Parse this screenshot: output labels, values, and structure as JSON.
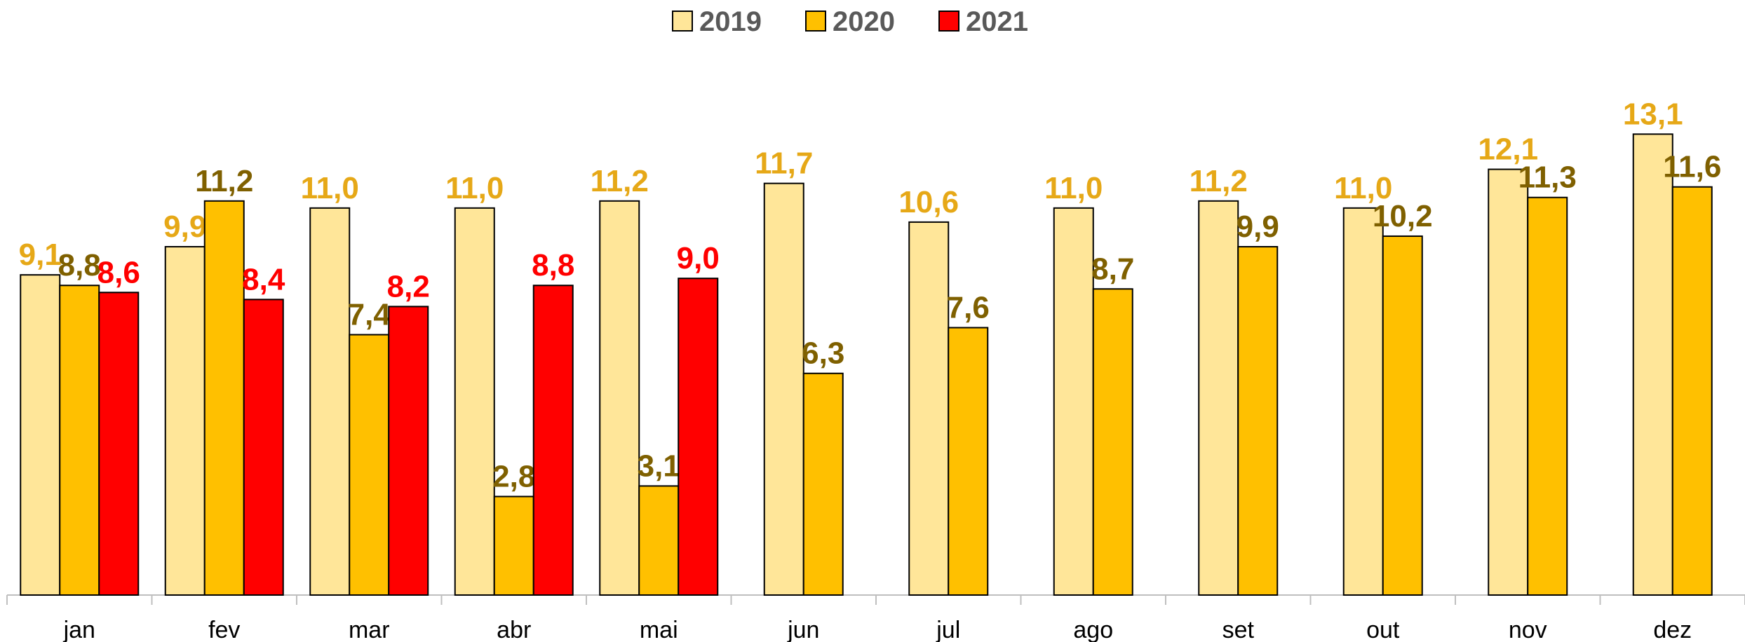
{
  "chart_data": {
    "type": "bar",
    "categories": [
      "jan",
      "fev",
      "mar",
      "abr",
      "mai",
      "jun",
      "jul",
      "ago",
      "set",
      "out",
      "nov",
      "dez"
    ],
    "series": [
      {
        "name": "2019",
        "color": "#ffe699",
        "label_color": "#e6a817",
        "values": [
          9.1,
          9.9,
          11.0,
          11.0,
          11.2,
          11.7,
          10.6,
          11.0,
          11.2,
          11.0,
          12.1,
          13.1
        ],
        "value_labels": [
          "9,1",
          "9,9",
          "11,0",
          "11,0",
          "11,2",
          "11,7",
          "10,6",
          "11,0",
          "11,2",
          "11,0",
          "12,1",
          "13,1"
        ]
      },
      {
        "name": "2020",
        "color": "#ffc000",
        "label_color": "#7f6000",
        "values": [
          8.8,
          11.2,
          7.4,
          2.8,
          3.1,
          6.3,
          7.6,
          8.7,
          9.9,
          10.2,
          11.3,
          11.6
        ],
        "value_labels": [
          "8,8",
          "11,2",
          "7,4",
          "2,8",
          "3,1",
          "6,3",
          "7,6",
          "8,7",
          "9,9",
          "10,2",
          "11,3",
          "11,6"
        ]
      },
      {
        "name": "2021",
        "color": "#ff0000",
        "label_color": "#ff0000",
        "values": [
          8.6,
          8.4,
          8.2,
          8.8,
          9.0,
          null,
          null,
          null,
          null,
          null,
          null,
          null
        ],
        "value_labels": [
          "8,6",
          "8,4",
          "8,2",
          "8,8",
          "9,0",
          null,
          null,
          null,
          null,
          null,
          null,
          null
        ]
      }
    ],
    "ylim": [
      0,
      15
    ],
    "legend": "top"
  }
}
